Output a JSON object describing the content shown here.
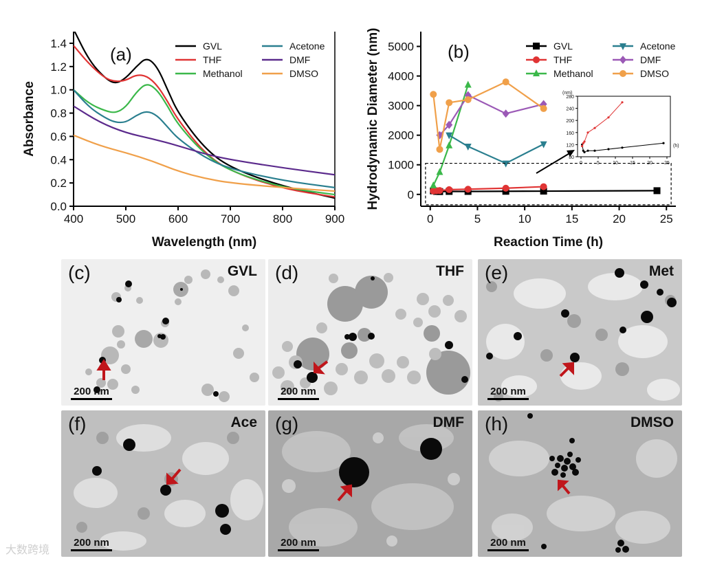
{
  "chart_data": [
    {
      "type": "line",
      "panel_label": "(a)",
      "xlabel": "Wavelength (nm)",
      "ylabel": "Absorbance",
      "xlim": [
        400,
        900
      ],
      "ylim": [
        0.0,
        1.5
      ],
      "xticks": [
        "400",
        "500",
        "600",
        "700",
        "800",
        "900"
      ],
      "yticks": [
        "0.0",
        "0.2",
        "0.4",
        "0.6",
        "0.8",
        "1.0",
        "1.2",
        "1.4"
      ],
      "legend": "top-right",
      "series": [
        {
          "name": "GVL",
          "color": "#000000",
          "x": [
            400,
            430,
            460,
            480,
            500,
            520,
            540,
            560,
            580,
            600,
            650,
            700,
            800,
            900
          ],
          "y": [
            1.52,
            1.25,
            1.1,
            1.05,
            1.1,
            1.2,
            1.28,
            1.2,
            1.0,
            0.8,
            0.5,
            0.33,
            0.17,
            0.07
          ]
        },
        {
          "name": "THF",
          "color": "#e03434",
          "x": [
            400,
            430,
            460,
            480,
            500,
            520,
            540,
            560,
            580,
            600,
            650,
            700,
            800,
            900
          ],
          "y": [
            1.38,
            1.22,
            1.1,
            1.07,
            1.08,
            1.13,
            1.12,
            1.04,
            0.9,
            0.74,
            0.46,
            0.3,
            0.15,
            0.08
          ]
        },
        {
          "name": "Methanol",
          "color": "#3bb84a",
          "x": [
            400,
            430,
            460,
            480,
            500,
            520,
            540,
            560,
            580,
            600,
            650,
            700,
            800,
            900
          ],
          "y": [
            1.0,
            0.88,
            0.82,
            0.8,
            0.85,
            0.98,
            1.06,
            1.0,
            0.86,
            0.7,
            0.45,
            0.3,
            0.16,
            0.1
          ]
        },
        {
          "name": "Acetone",
          "color": "#2a7f8f",
          "x": [
            400,
            430,
            460,
            480,
            500,
            520,
            540,
            560,
            580,
            600,
            650,
            700,
            800,
            900
          ],
          "y": [
            1.0,
            0.85,
            0.76,
            0.72,
            0.72,
            0.78,
            0.82,
            0.78,
            0.68,
            0.58,
            0.42,
            0.32,
            0.22,
            0.16
          ]
        },
        {
          "name": "DMF",
          "color": "#5b2a8c",
          "x": [
            400,
            450,
            500,
            550,
            600,
            650,
            700,
            800,
            900
          ],
          "y": [
            0.86,
            0.72,
            0.63,
            0.58,
            0.52,
            0.45,
            0.4,
            0.33,
            0.27
          ]
        },
        {
          "name": "DMSO",
          "color": "#f0a04a",
          "x": [
            400,
            450,
            500,
            550,
            600,
            650,
            700,
            800,
            900
          ],
          "y": [
            0.61,
            0.52,
            0.46,
            0.39,
            0.3,
            0.24,
            0.2,
            0.16,
            0.13
          ]
        }
      ]
    },
    {
      "type": "line",
      "panel_label": "(b)",
      "xlabel": "Reaction Time (h)",
      "ylabel": "Hydrodynamic Diameter (nm)",
      "xlim": [
        -1,
        26
      ],
      "ylim": [
        -400,
        5500
      ],
      "xticks": [
        "0",
        "5",
        "10",
        "15",
        "20",
        "25"
      ],
      "yticks": [
        "0",
        "1000",
        "2000",
        "3000",
        "4000",
        "5000"
      ],
      "legend": "top-right",
      "series": [
        {
          "name": "GVL",
          "color": "#000000",
          "marker": "square",
          "x": [
            0.33,
            0.67,
            1,
            2,
            4,
            8,
            12,
            24
          ],
          "y": [
            120,
            100,
            95,
            100,
            100,
            105,
            110,
            125
          ]
        },
        {
          "name": "THF",
          "color": "#e03434",
          "marker": "circle",
          "x": [
            0.33,
            0.67,
            1,
            2,
            4,
            8,
            12
          ],
          "y": [
            115,
            125,
            130,
            160,
            175,
            210,
            260
          ]
        },
        {
          "name": "Methanol",
          "color": "#3bb84a",
          "marker": "triangle-up",
          "x": [
            0.33,
            1,
            2,
            4
          ],
          "y": [
            300,
            750,
            1650,
            3700
          ]
        },
        {
          "name": "Acetone",
          "color": "#2a7f8f",
          "marker": "triangle-down",
          "x": [
            2,
            4,
            8,
            12
          ],
          "y": [
            2000,
            1620,
            1050,
            1700
          ]
        },
        {
          "name": "DMF",
          "color": "#9b59b6",
          "marker": "diamond",
          "x": [
            1,
            2,
            4,
            8,
            12
          ],
          "y": [
            2000,
            2350,
            3350,
            2730,
            3050
          ]
        },
        {
          "name": "DMSO",
          "color": "#f0a04a",
          "marker": "circle",
          "x": [
            0.33,
            1,
            2,
            4,
            8,
            12
          ],
          "y": [
            3380,
            1520,
            3100,
            3200,
            3800,
            2900
          ]
        }
      ],
      "inset": {
        "ylabel": "(nm)",
        "xlabel": "(h)",
        "xlim": [
          -1,
          26
        ],
        "ylim": [
          80,
          280
        ],
        "xticks": [
          "0",
          "5",
          "10",
          "15",
          "20",
          "25"
        ],
        "yticks": [
          "80",
          "120",
          "160",
          "200",
          "240",
          "280"
        ],
        "series": [
          {
            "name": "GVL",
            "color": "#000000",
            "x": [
              0.33,
              0.67,
              1,
              2,
              4,
              8,
              12,
              24
            ],
            "y": [
              120,
              100,
              95,
              100,
              100,
              105,
              110,
              125
            ]
          },
          {
            "name": "THF",
            "color": "#e03434",
            "x": [
              0.33,
              0.67,
              1,
              2,
              4,
              8,
              12
            ],
            "y": [
              115,
              125,
              130,
              160,
              175,
              210,
              260
            ]
          }
        ]
      }
    }
  ],
  "panels": [
    {
      "label": "(c)",
      "name": "GVL",
      "scale": "200 nm"
    },
    {
      "label": "(d)",
      "name": "THF",
      "scale": "200 nm"
    },
    {
      "label": "(e)",
      "name": "Met",
      "scale": "200 nm"
    },
    {
      "label": "(f)",
      "name": "Ace",
      "scale": "200 nm"
    },
    {
      "label": "(g)",
      "name": "DMF",
      "scale": "200 nm"
    },
    {
      "label": "(h)",
      "name": "DMSO",
      "scale": "200 nm"
    }
  ],
  "watermark": "大数跨境",
  "colors": {
    "arrow": "#c0161b",
    "particle": "#0a0a0a"
  }
}
